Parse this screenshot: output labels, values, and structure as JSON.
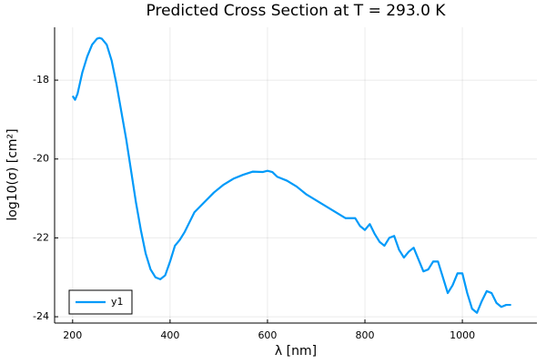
{
  "chart_data": {
    "type": "line",
    "title": "Predicted Cross Section at T = 293.0 K",
    "x_label": "λ [nm]",
    "y_label": "log10(σ) [cm²]",
    "x": [
      200,
      205,
      210,
      220,
      230,
      240,
      250,
      255,
      260,
      270,
      280,
      290,
      300,
      310,
      320,
      330,
      340,
      350,
      360,
      370,
      380,
      390,
      400,
      410,
      420,
      430,
      440,
      450,
      470,
      490,
      510,
      530,
      550,
      570,
      590,
      600,
      610,
      620,
      640,
      660,
      680,
      700,
      720,
      740,
      760,
      780,
      790,
      800,
      810,
      820,
      830,
      840,
      850,
      860,
      870,
      880,
      890,
      900,
      910,
      920,
      930,
      940,
      950,
      960,
      970,
      980,
      990,
      1000,
      1010,
      1020,
      1030,
      1040,
      1050,
      1060,
      1070,
      1080,
      1090,
      1100
    ],
    "series": [
      {
        "name": "y1",
        "color": "#009af9",
        "values": [
          -18.4,
          -18.5,
          -18.35,
          -17.8,
          -17.4,
          -17.1,
          -16.95,
          -16.93,
          -16.95,
          -17.1,
          -17.5,
          -18.1,
          -18.8,
          -19.5,
          -20.3,
          -21.1,
          -21.8,
          -22.4,
          -22.8,
          -23.0,
          -23.05,
          -22.95,
          -22.6,
          -22.2,
          -22.05,
          -21.85,
          -21.6,
          -21.35,
          -21.1,
          -20.85,
          -20.65,
          -20.5,
          -20.4,
          -20.32,
          -20.33,
          -20.3,
          -20.33,
          -20.45,
          -20.55,
          -20.7,
          -20.9,
          -21.05,
          -21.2,
          -21.35,
          -21.5,
          -21.5,
          -21.7,
          -21.8,
          -21.65,
          -21.9,
          -22.1,
          -22.2,
          -22.0,
          -21.95,
          -22.3,
          -22.5,
          -22.35,
          -22.25,
          -22.55,
          -22.85,
          -22.8,
          -22.6,
          -22.6,
          -23.0,
          -23.4,
          -23.2,
          -22.9,
          -22.9,
          -23.4,
          -23.8,
          -23.9,
          -23.6,
          -23.35,
          -23.4,
          -23.65,
          -23.75,
          -23.7,
          -23.7
        ]
      }
    ],
    "xlim": [
      163,
      1153
    ],
    "xticks": [
      200,
      400,
      600,
      800,
      1000
    ],
    "ylim": [
      -24.16,
      -16.66
    ],
    "yticks": [
      -18,
      -20,
      -22,
      -24
    ],
    "grid": true,
    "legend": "bottom-left"
  }
}
